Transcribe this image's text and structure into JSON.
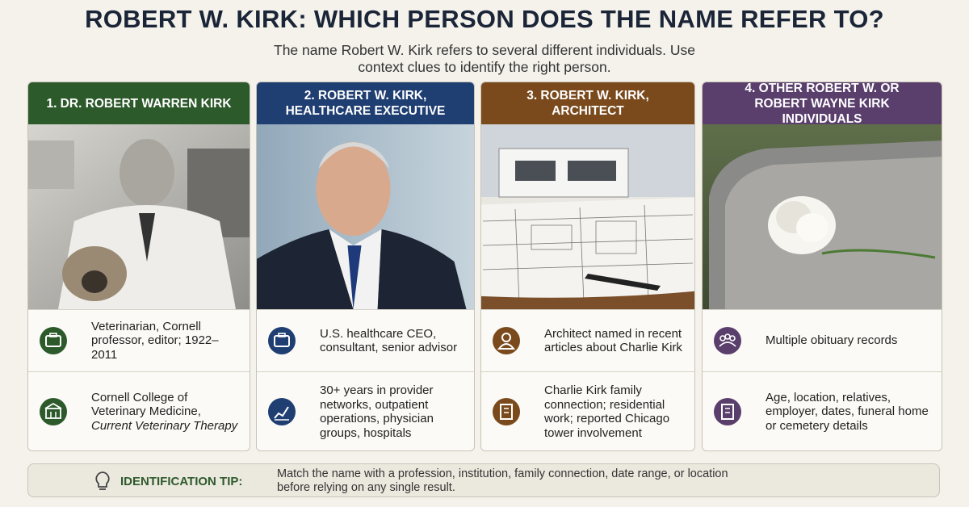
{
  "header": {
    "title": "ROBERT W. KIRK: WHICH PERSON DOES THE NAME REFER TO?",
    "subtitle": "The name Robert W. Kirk refers to several different individuals. Use context clues to identify the right person."
  },
  "cards": [
    {
      "title": "1. DR. ROBERT WARREN KIRK",
      "color": "#2d5a2b",
      "items": [
        {
          "text": "Veterinarian, Cornell professor, editor; 1922–2011"
        },
        {
          "text": "Cornell College of Veterinary Medicine,",
          "emphasis": "Current Veterinary Therapy"
        }
      ]
    },
    {
      "title": "2. ROBERT W. KIRK, HEALTHCARE EXECUTIVE",
      "color": "#1f3e72",
      "items": [
        {
          "text": "U.S. healthcare CEO, consultant, senior advisor"
        },
        {
          "text": "30+ years in provider networks, outpatient operations, physician groups, hospitals"
        }
      ]
    },
    {
      "title": "3. ROBERT W. KIRK, ARCHITECT",
      "color": "#7a4a1d",
      "items": [
        {
          "text": "Architect named in recent articles about Charlie Kirk"
        },
        {
          "text": "Charlie Kirk family connection; residential work; reported Chicago tower involvement"
        }
      ]
    },
    {
      "title": "4. OTHER ROBERT W. OR ROBERT WAYNE KIRK INDIVIDUALS",
      "color": "#5a3f6d",
      "items": [
        {
          "text": "Multiple obituary records"
        },
        {
          "text": "Age, location, relatives, employer, dates, funeral home or cemetery details"
        }
      ]
    }
  ],
  "tip": {
    "label": "IDENTIFICATION TIP:",
    "text": "Match the name with a profession, institution, family connection, date range, or location before relying on any single result."
  }
}
